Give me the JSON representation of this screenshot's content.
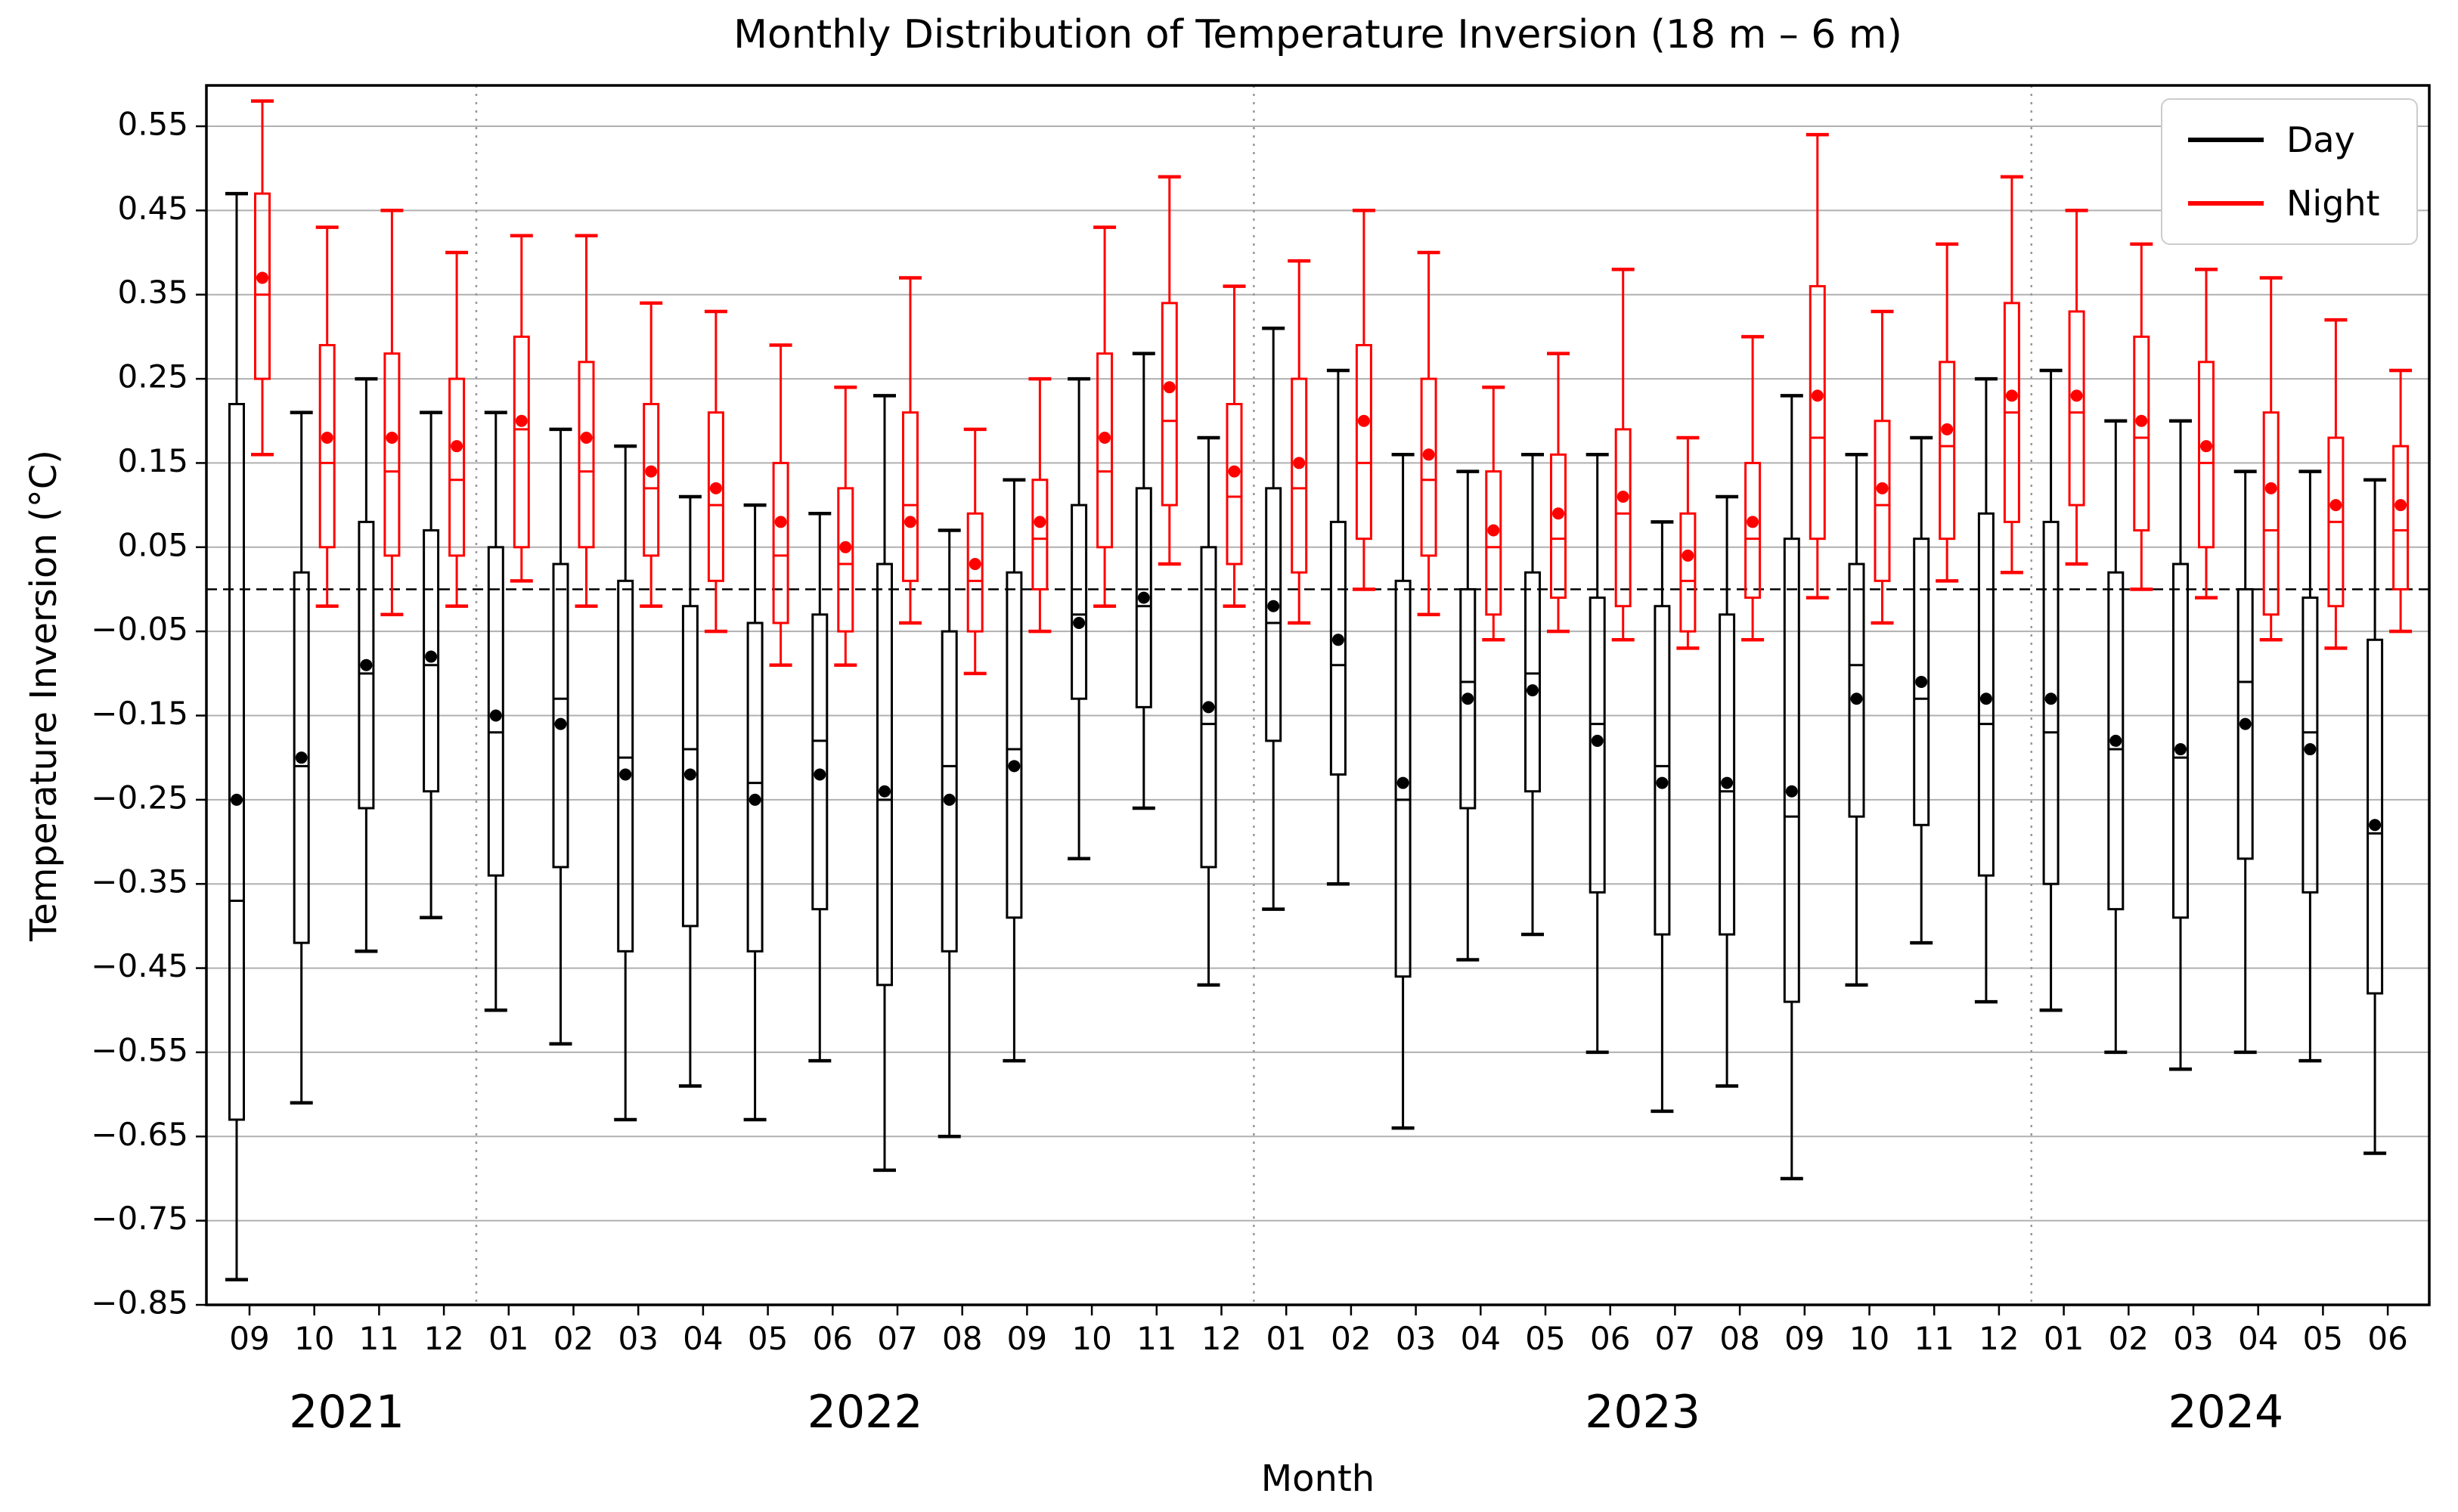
{
  "chart_data": {
    "type": "boxplot",
    "title": "Monthly Distribution of Temperature Inversion (18 m – 6 m)",
    "xlabel": "Month",
    "ylabel": "Temperature Inversion (°C)",
    "ylim": [
      -0.85,
      0.5985
    ],
    "yticks": [
      0.55,
      0.45,
      0.35,
      0.25,
      0.15,
      0.05,
      -0.05,
      -0.15,
      -0.25,
      -0.35,
      -0.45,
      -0.55,
      -0.65,
      -0.75,
      -0.85
    ],
    "zero_line": 0.0,
    "grid": true,
    "legend": {
      "position": "upper right",
      "entries": [
        {
          "label": "Day",
          "color": "#000000"
        },
        {
          "label": "Night",
          "color": "#ff0000"
        }
      ]
    },
    "categories": [
      "09",
      "10",
      "11",
      "12",
      "01",
      "02",
      "03",
      "04",
      "05",
      "06",
      "07",
      "08",
      "09",
      "10",
      "11",
      "12",
      "01",
      "02",
      "03",
      "04",
      "05",
      "06",
      "07",
      "08",
      "09",
      "10",
      "11",
      "12",
      "01",
      "02",
      "03",
      "04",
      "05",
      "06"
    ],
    "years": [
      {
        "label": "2021",
        "from": 0,
        "to": 3
      },
      {
        "label": "2022",
        "from": 4,
        "to": 15
      },
      {
        "label": "2023",
        "from": 16,
        "to": 27
      },
      {
        "label": "2024",
        "from": 28,
        "to": 33
      }
    ],
    "year_separators_after": [
      3,
      15,
      27
    ],
    "series": [
      {
        "name": "Day",
        "color": "#000000",
        "boxes": [
          {
            "lo": -0.82,
            "q1": -0.63,
            "med": -0.37,
            "mean": -0.25,
            "q3": 0.22,
            "hi": 0.47
          },
          {
            "lo": -0.61,
            "q1": -0.42,
            "med": -0.21,
            "mean": -0.2,
            "q3": 0.02,
            "hi": 0.21
          },
          {
            "lo": -0.43,
            "q1": -0.26,
            "med": -0.1,
            "mean": -0.09,
            "q3": 0.08,
            "hi": 0.25
          },
          {
            "lo": -0.39,
            "q1": -0.24,
            "med": -0.09,
            "mean": -0.08,
            "q3": 0.07,
            "hi": 0.21
          },
          {
            "lo": -0.5,
            "q1": -0.34,
            "med": -0.17,
            "mean": -0.15,
            "q3": 0.05,
            "hi": 0.21
          },
          {
            "lo": -0.54,
            "q1": -0.33,
            "med": -0.13,
            "mean": -0.16,
            "q3": 0.03,
            "hi": 0.19
          },
          {
            "lo": -0.63,
            "q1": -0.43,
            "med": -0.2,
            "mean": -0.22,
            "q3": 0.01,
            "hi": 0.17
          },
          {
            "lo": -0.59,
            "q1": -0.4,
            "med": -0.19,
            "mean": -0.22,
            "q3": -0.02,
            "hi": 0.11
          },
          {
            "lo": -0.63,
            "q1": -0.43,
            "med": -0.23,
            "mean": -0.25,
            "q3": -0.04,
            "hi": 0.1
          },
          {
            "lo": -0.56,
            "q1": -0.38,
            "med": -0.18,
            "mean": -0.22,
            "q3": -0.03,
            "hi": 0.09
          },
          {
            "lo": -0.69,
            "q1": -0.47,
            "med": -0.25,
            "mean": -0.24,
            "q3": 0.03,
            "hi": 0.23
          },
          {
            "lo": -0.65,
            "q1": -0.43,
            "med": -0.21,
            "mean": -0.25,
            "q3": -0.05,
            "hi": 0.07
          },
          {
            "lo": -0.56,
            "q1": -0.39,
            "med": -0.19,
            "mean": -0.21,
            "q3": 0.02,
            "hi": 0.13
          },
          {
            "lo": -0.32,
            "q1": -0.13,
            "med": -0.03,
            "mean": -0.04,
            "q3": 0.1,
            "hi": 0.25
          },
          {
            "lo": -0.26,
            "q1": -0.14,
            "med": -0.02,
            "mean": -0.01,
            "q3": 0.12,
            "hi": 0.28
          },
          {
            "lo": -0.47,
            "q1": -0.33,
            "med": -0.16,
            "mean": -0.14,
            "q3": 0.05,
            "hi": 0.18
          },
          {
            "lo": -0.38,
            "q1": -0.18,
            "med": -0.04,
            "mean": -0.02,
            "q3": 0.12,
            "hi": 0.31
          },
          {
            "lo": -0.35,
            "q1": -0.22,
            "med": -0.09,
            "mean": -0.06,
            "q3": 0.08,
            "hi": 0.26
          },
          {
            "lo": -0.64,
            "q1": -0.46,
            "med": -0.25,
            "mean": -0.23,
            "q3": 0.01,
            "hi": 0.16
          },
          {
            "lo": -0.44,
            "q1": -0.26,
            "med": -0.11,
            "mean": -0.13,
            "q3": 0.0,
            "hi": 0.14
          },
          {
            "lo": -0.41,
            "q1": -0.24,
            "med": -0.1,
            "mean": -0.12,
            "q3": 0.02,
            "hi": 0.16
          },
          {
            "lo": -0.55,
            "q1": -0.36,
            "med": -0.16,
            "mean": -0.18,
            "q3": -0.01,
            "hi": 0.16
          },
          {
            "lo": -0.62,
            "q1": -0.41,
            "med": -0.21,
            "mean": -0.23,
            "q3": -0.02,
            "hi": 0.08
          },
          {
            "lo": -0.59,
            "q1": -0.41,
            "med": -0.24,
            "mean": -0.23,
            "q3": -0.03,
            "hi": 0.11
          },
          {
            "lo": -0.7,
            "q1": -0.49,
            "med": -0.27,
            "mean": -0.24,
            "q3": 0.06,
            "hi": 0.23
          },
          {
            "lo": -0.47,
            "q1": -0.27,
            "med": -0.09,
            "mean": -0.13,
            "q3": 0.03,
            "hi": 0.16
          },
          {
            "lo": -0.42,
            "q1": -0.28,
            "med": -0.13,
            "mean": -0.11,
            "q3": 0.06,
            "hi": 0.18
          },
          {
            "lo": -0.49,
            "q1": -0.34,
            "med": -0.16,
            "mean": -0.13,
            "q3": 0.09,
            "hi": 0.25
          },
          {
            "lo": -0.5,
            "q1": -0.35,
            "med": -0.17,
            "mean": -0.13,
            "q3": 0.08,
            "hi": 0.26
          },
          {
            "lo": -0.55,
            "q1": -0.38,
            "med": -0.19,
            "mean": -0.18,
            "q3": 0.02,
            "hi": 0.2
          },
          {
            "lo": -0.57,
            "q1": -0.39,
            "med": -0.2,
            "mean": -0.19,
            "q3": 0.03,
            "hi": 0.2
          },
          {
            "lo": -0.55,
            "q1": -0.32,
            "med": -0.11,
            "mean": -0.16,
            "q3": 0.0,
            "hi": 0.14
          },
          {
            "lo": -0.56,
            "q1": -0.36,
            "med": -0.17,
            "mean": -0.19,
            "q3": -0.01,
            "hi": 0.14
          },
          {
            "lo": -0.67,
            "q1": -0.48,
            "med": -0.29,
            "mean": -0.28,
            "q3": -0.06,
            "hi": 0.13
          }
        ]
      },
      {
        "name": "Night",
        "color": "#ff0000",
        "boxes": [
          {
            "lo": 0.16,
            "q1": 0.25,
            "med": 0.35,
            "mean": 0.37,
            "q3": 0.47,
            "hi": 0.58
          },
          {
            "lo": -0.02,
            "q1": 0.05,
            "med": 0.15,
            "mean": 0.18,
            "q3": 0.29,
            "hi": 0.43
          },
          {
            "lo": -0.03,
            "q1": 0.04,
            "med": 0.14,
            "mean": 0.18,
            "q3": 0.28,
            "hi": 0.45
          },
          {
            "lo": -0.02,
            "q1": 0.04,
            "med": 0.13,
            "mean": 0.17,
            "q3": 0.25,
            "hi": 0.4
          },
          {
            "lo": 0.01,
            "q1": 0.05,
            "med": 0.19,
            "mean": 0.2,
            "q3": 0.3,
            "hi": 0.42
          },
          {
            "lo": -0.02,
            "q1": 0.05,
            "med": 0.14,
            "mean": 0.18,
            "q3": 0.27,
            "hi": 0.42
          },
          {
            "lo": -0.02,
            "q1": 0.04,
            "med": 0.12,
            "mean": 0.14,
            "q3": 0.22,
            "hi": 0.34
          },
          {
            "lo": -0.05,
            "q1": 0.01,
            "med": 0.1,
            "mean": 0.12,
            "q3": 0.21,
            "hi": 0.33
          },
          {
            "lo": -0.09,
            "q1": -0.04,
            "med": 0.04,
            "mean": 0.08,
            "q3": 0.15,
            "hi": 0.29
          },
          {
            "lo": -0.09,
            "q1": -0.05,
            "med": 0.03,
            "mean": 0.05,
            "q3": 0.12,
            "hi": 0.24
          },
          {
            "lo": -0.04,
            "q1": 0.01,
            "med": 0.1,
            "mean": 0.08,
            "q3": 0.21,
            "hi": 0.37
          },
          {
            "lo": -0.1,
            "q1": -0.05,
            "med": 0.01,
            "mean": 0.03,
            "q3": 0.09,
            "hi": 0.19
          },
          {
            "lo": -0.05,
            "q1": 0.0,
            "med": 0.06,
            "mean": 0.08,
            "q3": 0.13,
            "hi": 0.25
          },
          {
            "lo": -0.02,
            "q1": 0.05,
            "med": 0.14,
            "mean": 0.18,
            "q3": 0.28,
            "hi": 0.43
          },
          {
            "lo": 0.03,
            "q1": 0.1,
            "med": 0.2,
            "mean": 0.24,
            "q3": 0.34,
            "hi": 0.49
          },
          {
            "lo": -0.02,
            "q1": 0.03,
            "med": 0.11,
            "mean": 0.14,
            "q3": 0.22,
            "hi": 0.36
          },
          {
            "lo": -0.04,
            "q1": 0.02,
            "med": 0.12,
            "mean": 0.15,
            "q3": 0.25,
            "hi": 0.39
          },
          {
            "lo": 0.0,
            "q1": 0.06,
            "med": 0.15,
            "mean": 0.2,
            "q3": 0.29,
            "hi": 0.45
          },
          {
            "lo": -0.03,
            "q1": 0.04,
            "med": 0.13,
            "mean": 0.16,
            "q3": 0.25,
            "hi": 0.4
          },
          {
            "lo": -0.06,
            "q1": -0.03,
            "med": 0.05,
            "mean": 0.07,
            "q3": 0.14,
            "hi": 0.24
          },
          {
            "lo": -0.05,
            "q1": -0.01,
            "med": 0.06,
            "mean": 0.09,
            "q3": 0.16,
            "hi": 0.28
          },
          {
            "lo": -0.06,
            "q1": -0.02,
            "med": 0.09,
            "mean": 0.11,
            "q3": 0.19,
            "hi": 0.38
          },
          {
            "lo": -0.07,
            "q1": -0.05,
            "med": 0.01,
            "mean": 0.04,
            "q3": 0.09,
            "hi": 0.18
          },
          {
            "lo": -0.06,
            "q1": -0.01,
            "med": 0.06,
            "mean": 0.08,
            "q3": 0.15,
            "hi": 0.3
          },
          {
            "lo": -0.01,
            "q1": 0.06,
            "med": 0.18,
            "mean": 0.23,
            "q3": 0.36,
            "hi": 0.54
          },
          {
            "lo": -0.04,
            "q1": 0.01,
            "med": 0.1,
            "mean": 0.12,
            "q3": 0.2,
            "hi": 0.33
          },
          {
            "lo": 0.01,
            "q1": 0.06,
            "med": 0.17,
            "mean": 0.19,
            "q3": 0.27,
            "hi": 0.41
          },
          {
            "lo": 0.02,
            "q1": 0.08,
            "med": 0.21,
            "mean": 0.23,
            "q3": 0.34,
            "hi": 0.49
          },
          {
            "lo": 0.03,
            "q1": 0.1,
            "med": 0.21,
            "mean": 0.23,
            "q3": 0.33,
            "hi": 0.45
          },
          {
            "lo": 0.0,
            "q1": 0.07,
            "med": 0.18,
            "mean": 0.2,
            "q3": 0.3,
            "hi": 0.41
          },
          {
            "lo": -0.01,
            "q1": 0.05,
            "med": 0.15,
            "mean": 0.17,
            "q3": 0.27,
            "hi": 0.38
          },
          {
            "lo": -0.06,
            "q1": -0.03,
            "med": 0.07,
            "mean": 0.12,
            "q3": 0.21,
            "hi": 0.37
          },
          {
            "lo": -0.07,
            "q1": -0.02,
            "med": 0.08,
            "mean": 0.1,
            "q3": 0.18,
            "hi": 0.32
          },
          {
            "lo": -0.05,
            "q1": 0.0,
            "med": 0.07,
            "mean": 0.1,
            "q3": 0.17,
            "hi": 0.26
          }
        ]
      }
    ],
    "style": {
      "grid_color": "#b0b0b0",
      "separator_color": "#999999",
      "zero_line_color": "#000000",
      "background": "#ffffff"
    }
  }
}
